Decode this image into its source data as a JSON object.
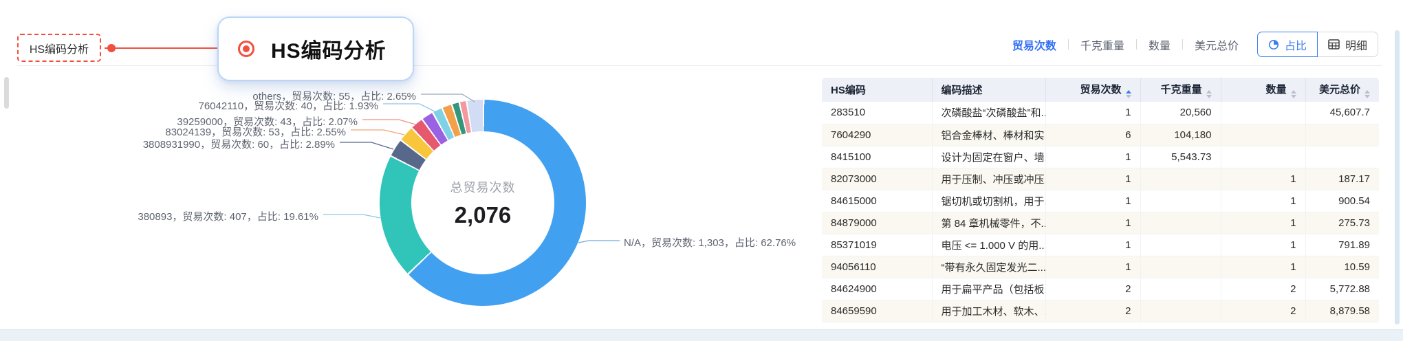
{
  "page": {
    "section_label": "HS编码分析",
    "callout_title": "HS编码分析"
  },
  "toolbar": {
    "metrics": [
      {
        "label": "贸易次数",
        "active": true
      },
      {
        "label": "千克重量",
        "active": false
      },
      {
        "label": "数量",
        "active": false
      },
      {
        "label": "美元总价",
        "active": false
      }
    ],
    "views": [
      {
        "label": "占比",
        "icon": "pie-chart-icon",
        "active": true
      },
      {
        "label": "明细",
        "icon": "table-icon",
        "active": false
      }
    ]
  },
  "chart_data": {
    "type": "pie",
    "subtype": "donut",
    "center": {
      "label": "总贸易次数",
      "value": "2,076"
    },
    "total_trades": 2076,
    "legend": "off",
    "segments": [
      {
        "name": "N/A",
        "trades": 1303,
        "pct": 62.76,
        "color": "#41A0F0"
      },
      {
        "name": "380893",
        "trades": 407,
        "pct": 19.61,
        "color": "#30C5B8"
      },
      {
        "name": "3808931990",
        "trades": 60,
        "pct": 2.89,
        "color": "#58688B"
      },
      {
        "name": "83024139",
        "trades": 53,
        "pct": 2.55,
        "color": "#F7C63C"
      },
      {
        "name": "39259000",
        "trades": 43,
        "pct": 2.07,
        "color": "#E5586E"
      },
      {
        "name": "76042110",
        "trades": 40,
        "pct": 1.93,
        "color": "#9B61E3"
      },
      {
        "name": "",
        "pct": 1.6,
        "color": "#7FD2E5"
      },
      {
        "name": "",
        "pct": 1.6,
        "color": "#F2A04A"
      },
      {
        "name": "",
        "pct": 1.2,
        "color": "#33977B"
      },
      {
        "name": "",
        "pct": 1.14,
        "color": "#F2989E"
      },
      {
        "name": "others",
        "trades": 55,
        "pct": 2.65,
        "color": "#D1DDF4"
      }
    ],
    "labels": [
      {
        "text": "others，贸易次数: 55，占比: 2.65%",
        "line_color": "#9AA7B8"
      },
      {
        "text": "76042110，贸易次数: 40，占比: 1.93%",
        "line_color": "#8FC5E8"
      },
      {
        "text": "39259000，贸易次数: 43，占比: 2.07%",
        "line_color": "#EE8F82"
      },
      {
        "text": "83024139，贸易次数: 53，占比: 2.55%",
        "line_color": "#F2A478"
      },
      {
        "text": "3808931990，贸易次数: 60，占比: 2.89%",
        "line_color": "#58688B"
      },
      {
        "text": "380893，贸易次数: 407，占比: 19.61%",
        "line_color": "#8FC5E8"
      },
      {
        "text": "N/A，贸易次数: 1,303，占比: 62.76%",
        "line_color": "#6FA8E0"
      }
    ]
  },
  "table": {
    "columns": [
      {
        "label": "HS编码",
        "sortable": false
      },
      {
        "label": "编码描述",
        "sortable": false
      },
      {
        "label": "贸易次数",
        "sortable": true,
        "sorted": true
      },
      {
        "label": "千克重量",
        "sortable": true
      },
      {
        "label": "数量",
        "sortable": true
      },
      {
        "label": "美元总价",
        "sortable": true
      }
    ],
    "rows": [
      {
        "hs": "283510",
        "desc": "次磷酸盐“次磷酸盐”和...",
        "trades": "1",
        "kg": "20,560",
        "qty": "",
        "usd": "45,607.7"
      },
      {
        "hs": "7604290",
        "desc": "铝合金棒材、棒材和实...",
        "trades": "6",
        "kg": "104,180",
        "qty": "",
        "usd": ""
      },
      {
        "hs": "8415100",
        "desc": "设计为固定在窗户、墙...",
        "trades": "1",
        "kg": "5,543.73",
        "qty": "",
        "usd": ""
      },
      {
        "hs": "82073000",
        "desc": "用于压制、冲压或冲压...",
        "trades": "1",
        "kg": "",
        "qty": "1",
        "usd": "187.17"
      },
      {
        "hs": "84615000",
        "desc": "锯切机或切割机，用于...",
        "trades": "1",
        "kg": "",
        "qty": "1",
        "usd": "900.54"
      },
      {
        "hs": "84879000",
        "desc": "第 84 章机械零件，不...",
        "trades": "1",
        "kg": "",
        "qty": "1",
        "usd": "275.73"
      },
      {
        "hs": "85371019",
        "desc": "电压 <= 1.000 V 的用...",
        "trades": "1",
        "kg": "",
        "qty": "1",
        "usd": "791.89"
      },
      {
        "hs": "94056110",
        "desc": "“带有永久固定发光二...",
        "trades": "1",
        "kg": "",
        "qty": "1",
        "usd": "10.59"
      },
      {
        "hs": "84624900",
        "desc": "用于扁平产品（包括板...",
        "trades": "2",
        "kg": "",
        "qty": "2",
        "usd": "5,772.88"
      },
      {
        "hs": "84659590",
        "desc": "用于加工木材、软木、...",
        "trades": "2",
        "kg": "",
        "qty": "2",
        "usd": "8,879.58"
      }
    ]
  }
}
